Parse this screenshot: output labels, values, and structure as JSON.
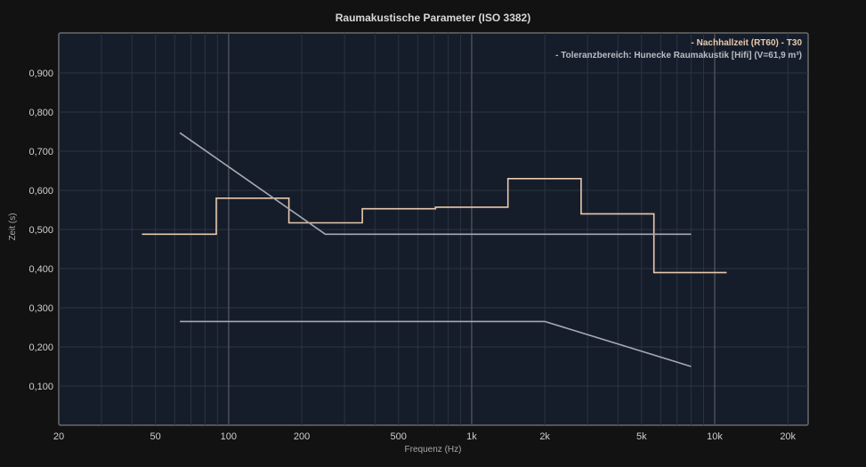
{
  "chart_data": {
    "type": "line",
    "title": "Raumakustische Parameter (ISO 3382)",
    "xlabel": "Frequenz (Hz)",
    "ylabel": "Zeit (s)",
    "x_scale": "log",
    "xlim": [
      20,
      30000
    ],
    "ylim": [
      0,
      1.0
    ],
    "x_ticks": [
      {
        "value": 20,
        "label": "20"
      },
      {
        "value": 50,
        "label": "50"
      },
      {
        "value": 100,
        "label": "100"
      },
      {
        "value": 200,
        "label": "200"
      },
      {
        "value": 500,
        "label": "500"
      },
      {
        "value": 1000,
        "label": "1k"
      },
      {
        "value": 2000,
        "label": "2k"
      },
      {
        "value": 5000,
        "label": "5k"
      },
      {
        "value": 10000,
        "label": "10k"
      },
      {
        "value": 20000,
        "label": "20k"
      }
    ],
    "y_ticks": [
      {
        "value": 0.1,
        "label": "0,100"
      },
      {
        "value": 0.2,
        "label": "0,200"
      },
      {
        "value": 0.3,
        "label": "0,300"
      },
      {
        "value": 0.4,
        "label": "0,400"
      },
      {
        "value": 0.5,
        "label": "0,500"
      },
      {
        "value": 0.6,
        "label": "0,600"
      },
      {
        "value": 0.7,
        "label": "0,700"
      },
      {
        "value": 0.8,
        "label": "0,800"
      },
      {
        "value": 0.9,
        "label": "0,900"
      }
    ],
    "grid": true,
    "legend_position": "top-right",
    "series": [
      {
        "name": "Nachhallzeit (RT60) - T30",
        "legend_label": "- Nachhallzeit (RT60) - T30",
        "color": "#e8c9ad",
        "style": "step",
        "points": [
          {
            "x": 44,
            "y": 0.488
          },
          {
            "x": 89,
            "y": 0.488
          },
          {
            "x": 89,
            "y": 0.58
          },
          {
            "x": 177,
            "y": 0.58
          },
          {
            "x": 177,
            "y": 0.517
          },
          {
            "x": 355,
            "y": 0.517
          },
          {
            "x": 355,
            "y": 0.553
          },
          {
            "x": 710,
            "y": 0.553
          },
          {
            "x": 710,
            "y": 0.557
          },
          {
            "x": 1410,
            "y": 0.557
          },
          {
            "x": 1410,
            "y": 0.63
          },
          {
            "x": 2820,
            "y": 0.63
          },
          {
            "x": 2820,
            "y": 0.54
          },
          {
            "x": 5620,
            "y": 0.54
          },
          {
            "x": 5620,
            "y": 0.39
          },
          {
            "x": 11200,
            "y": 0.39
          }
        ]
      },
      {
        "name": "Toleranzbereich: Hunecke Raumakustik [Hifi] (V=61,9 m³)",
        "legend_label": "- Toleranzbereich: Hunecke Raumakustik [Hifi] (V=61,9 m³)",
        "color": "#a7aab4",
        "style": "line",
        "parts": [
          [
            {
              "x": 63,
              "y": 0.747
            },
            {
              "x": 250,
              "y": 0.488
            },
            {
              "x": 8000,
              "y": 0.488
            }
          ],
          [
            {
              "x": 63,
              "y": 0.265
            },
            {
              "x": 2000,
              "y": 0.265
            },
            {
              "x": 8000,
              "y": 0.15
            }
          ]
        ]
      }
    ]
  }
}
